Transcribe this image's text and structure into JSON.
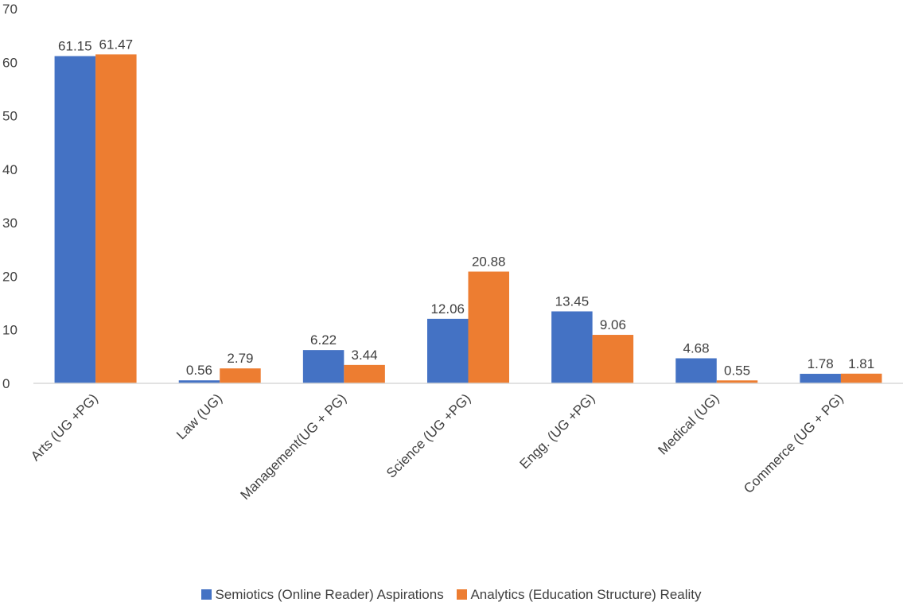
{
  "chart_data": {
    "type": "bar",
    "categories": [
      "Arts (UG +PG)",
      "Law (UG)",
      "Management(UG + PG)",
      "Science (UG +PG)",
      "Engg. (UG +PG)",
      "Medical (UG)",
      "Commerce (UG + PG)"
    ],
    "series": [
      {
        "name": "Semiotics (Online Reader) Aspirations",
        "color": "#4472C4",
        "values": [
          61.15,
          0.56,
          6.22,
          12.06,
          13.45,
          4.68,
          1.78
        ],
        "labels": [
          "61.15",
          "0.56",
          "6.22",
          "12.06",
          "13.45",
          "4.68",
          "1.78"
        ]
      },
      {
        "name": "Analytics  (Education Structure) Reality",
        "color": "#ED7D31",
        "values": [
          61.47,
          2.79,
          3.44,
          20.88,
          9.06,
          0.55,
          1.81
        ],
        "labels": [
          "61.47",
          "2.79",
          "3.44",
          "20.88",
          "9.06",
          "0.55",
          "1.81"
        ]
      }
    ],
    "y_ticks": [
      "0",
      "10",
      "20",
      "30",
      "40",
      "50",
      "60",
      "70"
    ],
    "ylim": [
      0,
      70
    ],
    "grid": false,
    "legend_position": "bottom",
    "title": "",
    "xlabel": "",
    "ylabel": ""
  }
}
